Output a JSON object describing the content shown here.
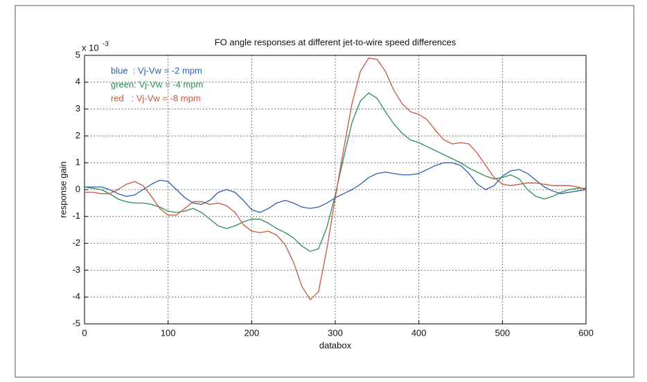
{
  "chart_data": {
    "type": "line",
    "title": "FO angle responses at different jet-to-wire speed differences",
    "x_label": "databox",
    "y_label": "response gain",
    "y_exponent_base": "x 10",
    "y_exponent": "-3",
    "x": [
      0,
      10,
      20,
      30,
      40,
      50,
      60,
      70,
      80,
      90,
      100,
      110,
      120,
      130,
      140,
      150,
      160,
      170,
      180,
      190,
      200,
      210,
      220,
      230,
      240,
      250,
      260,
      270,
      280,
      290,
      300,
      310,
      320,
      330,
      340,
      350,
      360,
      370,
      380,
      390,
      400,
      410,
      420,
      430,
      440,
      450,
      460,
      470,
      480,
      490,
      500,
      510,
      520,
      530,
      540,
      550,
      560,
      570,
      580,
      590,
      600
    ],
    "series": [
      {
        "name": "blue  : Vj-Vw = -2 mpm",
        "color": "#2b5fa8",
        "values": [
          0.1,
          0.1,
          0.1,
          0.0,
          -0.15,
          -0.25,
          -0.2,
          0.0,
          0.2,
          0.35,
          0.3,
          0.0,
          -0.3,
          -0.5,
          -0.55,
          -0.4,
          -0.1,
          0.0,
          -0.1,
          -0.4,
          -0.75,
          -0.85,
          -0.7,
          -0.5,
          -0.4,
          -0.5,
          -0.65,
          -0.7,
          -0.65,
          -0.5,
          -0.3,
          -0.15,
          0.0,
          0.2,
          0.45,
          0.6,
          0.65,
          0.6,
          0.55,
          0.55,
          0.6,
          0.75,
          0.9,
          1.0,
          1.0,
          0.9,
          0.6,
          0.2,
          0.0,
          0.15,
          0.5,
          0.7,
          0.75,
          0.6,
          0.35,
          0.1,
          -0.05,
          -0.15,
          -0.1,
          -0.05,
          0.0
        ]
      },
      {
        "name": "green: Vj-Vw = -4 mpm",
        "color": "#2e8b57",
        "values": [
          0.1,
          0.05,
          0.0,
          -0.15,
          -0.35,
          -0.45,
          -0.5,
          -0.5,
          -0.55,
          -0.65,
          -0.8,
          -0.85,
          -0.8,
          -0.7,
          -0.85,
          -1.1,
          -1.35,
          -1.45,
          -1.35,
          -1.2,
          -1.1,
          -1.1,
          -1.25,
          -1.45,
          -1.6,
          -1.8,
          -2.1,
          -2.3,
          -2.2,
          -1.4,
          -0.2,
          1.2,
          2.5,
          3.3,
          3.6,
          3.4,
          2.9,
          2.45,
          2.1,
          1.85,
          1.75,
          1.6,
          1.45,
          1.3,
          1.15,
          1.0,
          0.8,
          0.65,
          0.5,
          0.4,
          0.45,
          0.55,
          0.4,
          0.0,
          -0.25,
          -0.35,
          -0.25,
          -0.1,
          0.0,
          0.05,
          0.05
        ]
      },
      {
        "name": "red   : Vj-Vw = -8 mpm",
        "color": "#c8553d",
        "values": [
          -0.1,
          -0.1,
          -0.15,
          -0.15,
          0.0,
          0.2,
          0.3,
          0.15,
          -0.25,
          -0.7,
          -0.95,
          -0.95,
          -0.7,
          -0.45,
          -0.45,
          -0.55,
          -0.5,
          -0.6,
          -0.85,
          -1.3,
          -1.55,
          -1.6,
          -1.55,
          -1.7,
          -2.05,
          -2.7,
          -3.6,
          -4.1,
          -3.8,
          -2.2,
          -0.3,
          1.5,
          3.2,
          4.4,
          4.9,
          4.85,
          4.4,
          3.7,
          3.2,
          2.9,
          2.8,
          2.6,
          2.2,
          1.85,
          1.7,
          1.75,
          1.7,
          1.35,
          0.9,
          0.45,
          0.2,
          0.15,
          0.2,
          0.25,
          0.25,
          0.2,
          0.15,
          0.15,
          0.15,
          0.1,
          0.0
        ]
      }
    ],
    "xlim": [
      0,
      600
    ],
    "xticks": [
      0,
      100,
      200,
      300,
      400,
      500,
      600
    ],
    "ylim": [
      -5,
      5
    ],
    "yticks": [
      -5,
      -4,
      -3,
      -2,
      -1,
      0,
      1,
      2,
      3,
      4,
      5
    ],
    "grid": true
  }
}
